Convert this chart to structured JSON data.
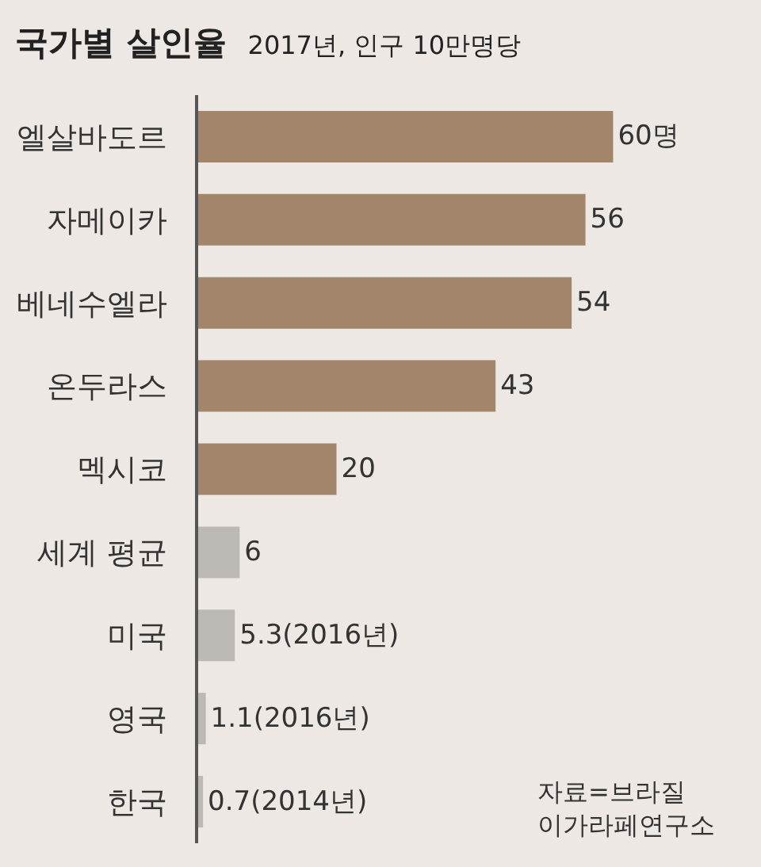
{
  "chart_data": {
    "type": "bar",
    "orientation": "horizontal",
    "title": "국가별 살인율",
    "subtitle": "2017년, 인구 10만명당",
    "categories": [
      "엘살바도르",
      "자메이카",
      "베네수엘라",
      "온두라스",
      "멕시코",
      "세계 평균",
      "미국",
      "영국",
      "한국"
    ],
    "values": [
      60,
      56,
      54,
      43,
      20,
      6,
      5.3,
      1.1,
      0.7
    ],
    "colors": [
      "#a3856b",
      "#a3856b",
      "#a3856b",
      "#a3856b",
      "#a3856b",
      "#bcb8b4",
      "#bcb8b4",
      "#bcb8b4",
      "#bcb8b4"
    ],
    "value_labels": [
      "60명",
      "56",
      "54",
      "43",
      "20",
      "6",
      "5.3(2016년)",
      "1.1(2016년)",
      "0.7(2014년)"
    ],
    "annotations": [
      "자료=브라질\n이가라페연구소"
    ]
  }
}
